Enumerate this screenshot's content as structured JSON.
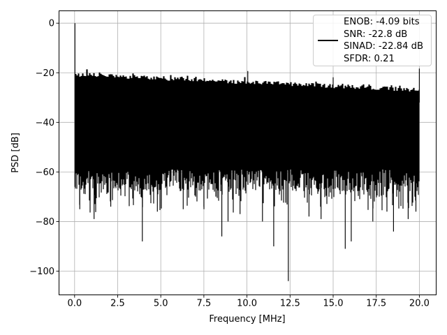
{
  "figure": {
    "background_color": "#ffffff",
    "plot_background_color": "#ffffff",
    "frame_color": "#000000"
  },
  "chart_data": {
    "type": "line",
    "title": "",
    "xlabel": "Frequency [MHz]",
    "ylabel": "PSD [dB]",
    "xlim": [
      -0.95,
      20.95
    ],
    "ylim": [
      -109.5,
      5.0
    ],
    "xticks": [
      0.0,
      2.5,
      5.0,
      7.5,
      10.0,
      12.5,
      15.0,
      17.5,
      20.0
    ],
    "xtick_labels": [
      "0.0",
      "2.5",
      "5.0",
      "7.5",
      "10.0",
      "12.5",
      "15.0",
      "17.5",
      "20.0"
    ],
    "yticks": [
      0,
      -20,
      -40,
      -60,
      -80,
      -100
    ],
    "ytick_labels": [
      "0",
      "−20",
      "−40",
      "−60",
      "−80",
      "−100"
    ],
    "grid": true,
    "grid_color": "#b0b0b0",
    "line_color": "#000000",
    "legend": {
      "position": "upper right",
      "border_color": "#cccccc",
      "sample_color": "#000000",
      "lines": [
        "ENOB: -4.09 bits",
        "SNR: -22.8 dB",
        "SINAD: -22.84 dB",
        "SFDR: 0.21"
      ]
    },
    "measurements": {
      "enob_bits": -4.09,
      "snr_db": -22.8,
      "sinad_db": -22.84,
      "sfdr": 0.21
    },
    "series_spec": {
      "description": "Dense FFT noise-floor PSD trace rendered as a solid band with spurs and notches",
      "x_range_mhz": [
        0,
        20
      ],
      "dc_spike": {
        "x": 0.02,
        "top_db": 0,
        "bottom_db": -66
      },
      "noise_top_db_start": -21.5,
      "noise_top_db_end": -27.8,
      "noise_top_jitter_db": 1.7,
      "noise_solid_bottom_db": [
        -59,
        -68
      ],
      "needle_probability": 0.34,
      "needle_extra_db": [
        2,
        10
      ],
      "spurs": [
        {
          "x": 10.05,
          "top_db": -19.3
        },
        {
          "x": 15.0,
          "top_db": -21.8
        },
        {
          "x": 20.0,
          "top_db": -18.3
        }
      ],
      "deep_notches": [
        {
          "x": 0.3,
          "bottom_db": -75
        },
        {
          "x": 1.13,
          "bottom_db": -79
        },
        {
          "x": 2.1,
          "bottom_db": -74
        },
        {
          "x": 3.93,
          "bottom_db": -88
        },
        {
          "x": 4.8,
          "bottom_db": -76
        },
        {
          "x": 6.3,
          "bottom_db": -75
        },
        {
          "x": 7.5,
          "bottom_db": -74
        },
        {
          "x": 8.54,
          "bottom_db": -86
        },
        {
          "x": 8.9,
          "bottom_db": -80
        },
        {
          "x": 9.6,
          "bottom_db": -77
        },
        {
          "x": 10.9,
          "bottom_db": -80
        },
        {
          "x": 11.55,
          "bottom_db": -90
        },
        {
          "x": 12.4,
          "bottom_db": -104
        },
        {
          "x": 13.6,
          "bottom_db": -78
        },
        {
          "x": 14.3,
          "bottom_db": -79
        },
        {
          "x": 15.7,
          "bottom_db": -91
        },
        {
          "x": 16.05,
          "bottom_db": -88
        },
        {
          "x": 17.3,
          "bottom_db": -80
        },
        {
          "x": 18.5,
          "bottom_db": -84
        },
        {
          "x": 19.35,
          "bottom_db": -79
        },
        {
          "x": 19.8,
          "bottom_db": -76
        }
      ],
      "random_seed": 42
    }
  }
}
